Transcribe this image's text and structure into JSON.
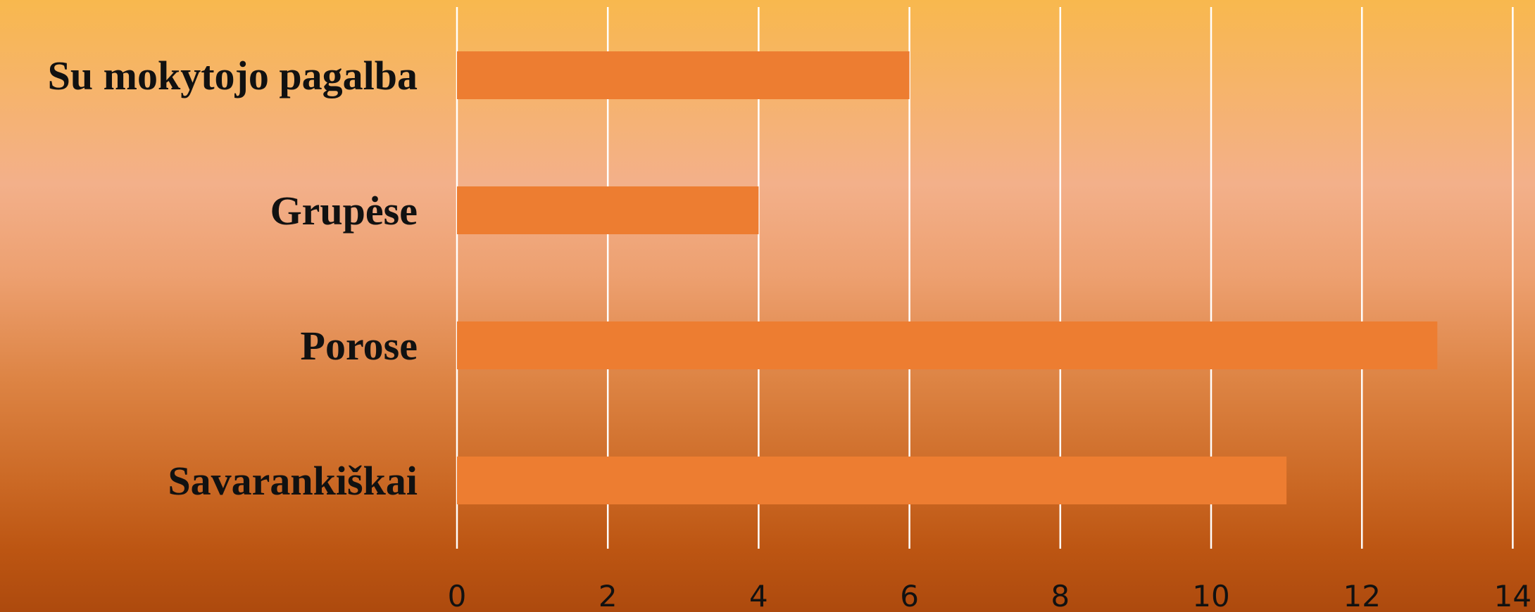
{
  "chart_data": {
    "type": "bar",
    "orientation": "horizontal",
    "categories": [
      "Su mokytojo pagalba",
      "Grupėse",
      "Porose",
      "Savarankiškai"
    ],
    "values": [
      6,
      4,
      13,
      11
    ],
    "xlim": [
      0,
      14
    ],
    "ticks": [
      0,
      2,
      4,
      6,
      8,
      10,
      12,
      14
    ],
    "tick_labels": [
      "0",
      "2",
      "4",
      "6",
      "8",
      "10",
      "12",
      "14"
    ],
    "grid": "vertical",
    "bar_color": "#ed7d31",
    "gridline_color": "#ffffff",
    "title": "",
    "xlabel": "",
    "ylabel": ""
  }
}
